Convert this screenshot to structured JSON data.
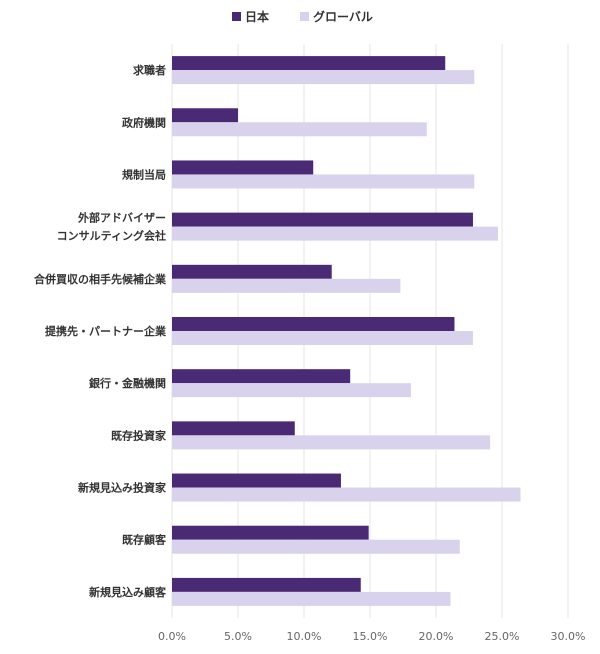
{
  "chart_data": {
    "type": "bar",
    "orientation": "horizontal",
    "categories": [
      "求職者",
      "政府機関",
      "規制当局",
      "外部アドバイザー\nコンサルティング会社",
      "合併買収の相手先候補企業",
      "提携先・パートナー企業",
      "銀行・金融機関",
      "既存投資家",
      "新規見込み投資家",
      "既存顧客",
      "新規見込み顧客"
    ],
    "series": [
      {
        "name": "日本",
        "color": "#4b2a75",
        "values": [
          20.7,
          5.0,
          10.7,
          22.8,
          12.1,
          21.4,
          13.5,
          9.3,
          12.8,
          14.9,
          14.3
        ]
      },
      {
        "name": "グローバル",
        "color": "#d9d2ec",
        "values": [
          22.9,
          19.3,
          22.9,
          24.7,
          17.3,
          22.8,
          18.1,
          24.1,
          26.4,
          21.8,
          21.1
        ]
      }
    ],
    "title": "",
    "xlabel": "",
    "ylabel": "",
    "xlim": [
      0,
      30
    ],
    "ticks": [
      "0.0%",
      "5.0%",
      "10.0%",
      "15.0%",
      "20.0%",
      "25.0%",
      "30.0%"
    ],
    "tick_values": [
      0,
      5,
      10,
      15,
      20,
      25,
      30
    ],
    "grid": true,
    "legend_position": "top-center"
  }
}
